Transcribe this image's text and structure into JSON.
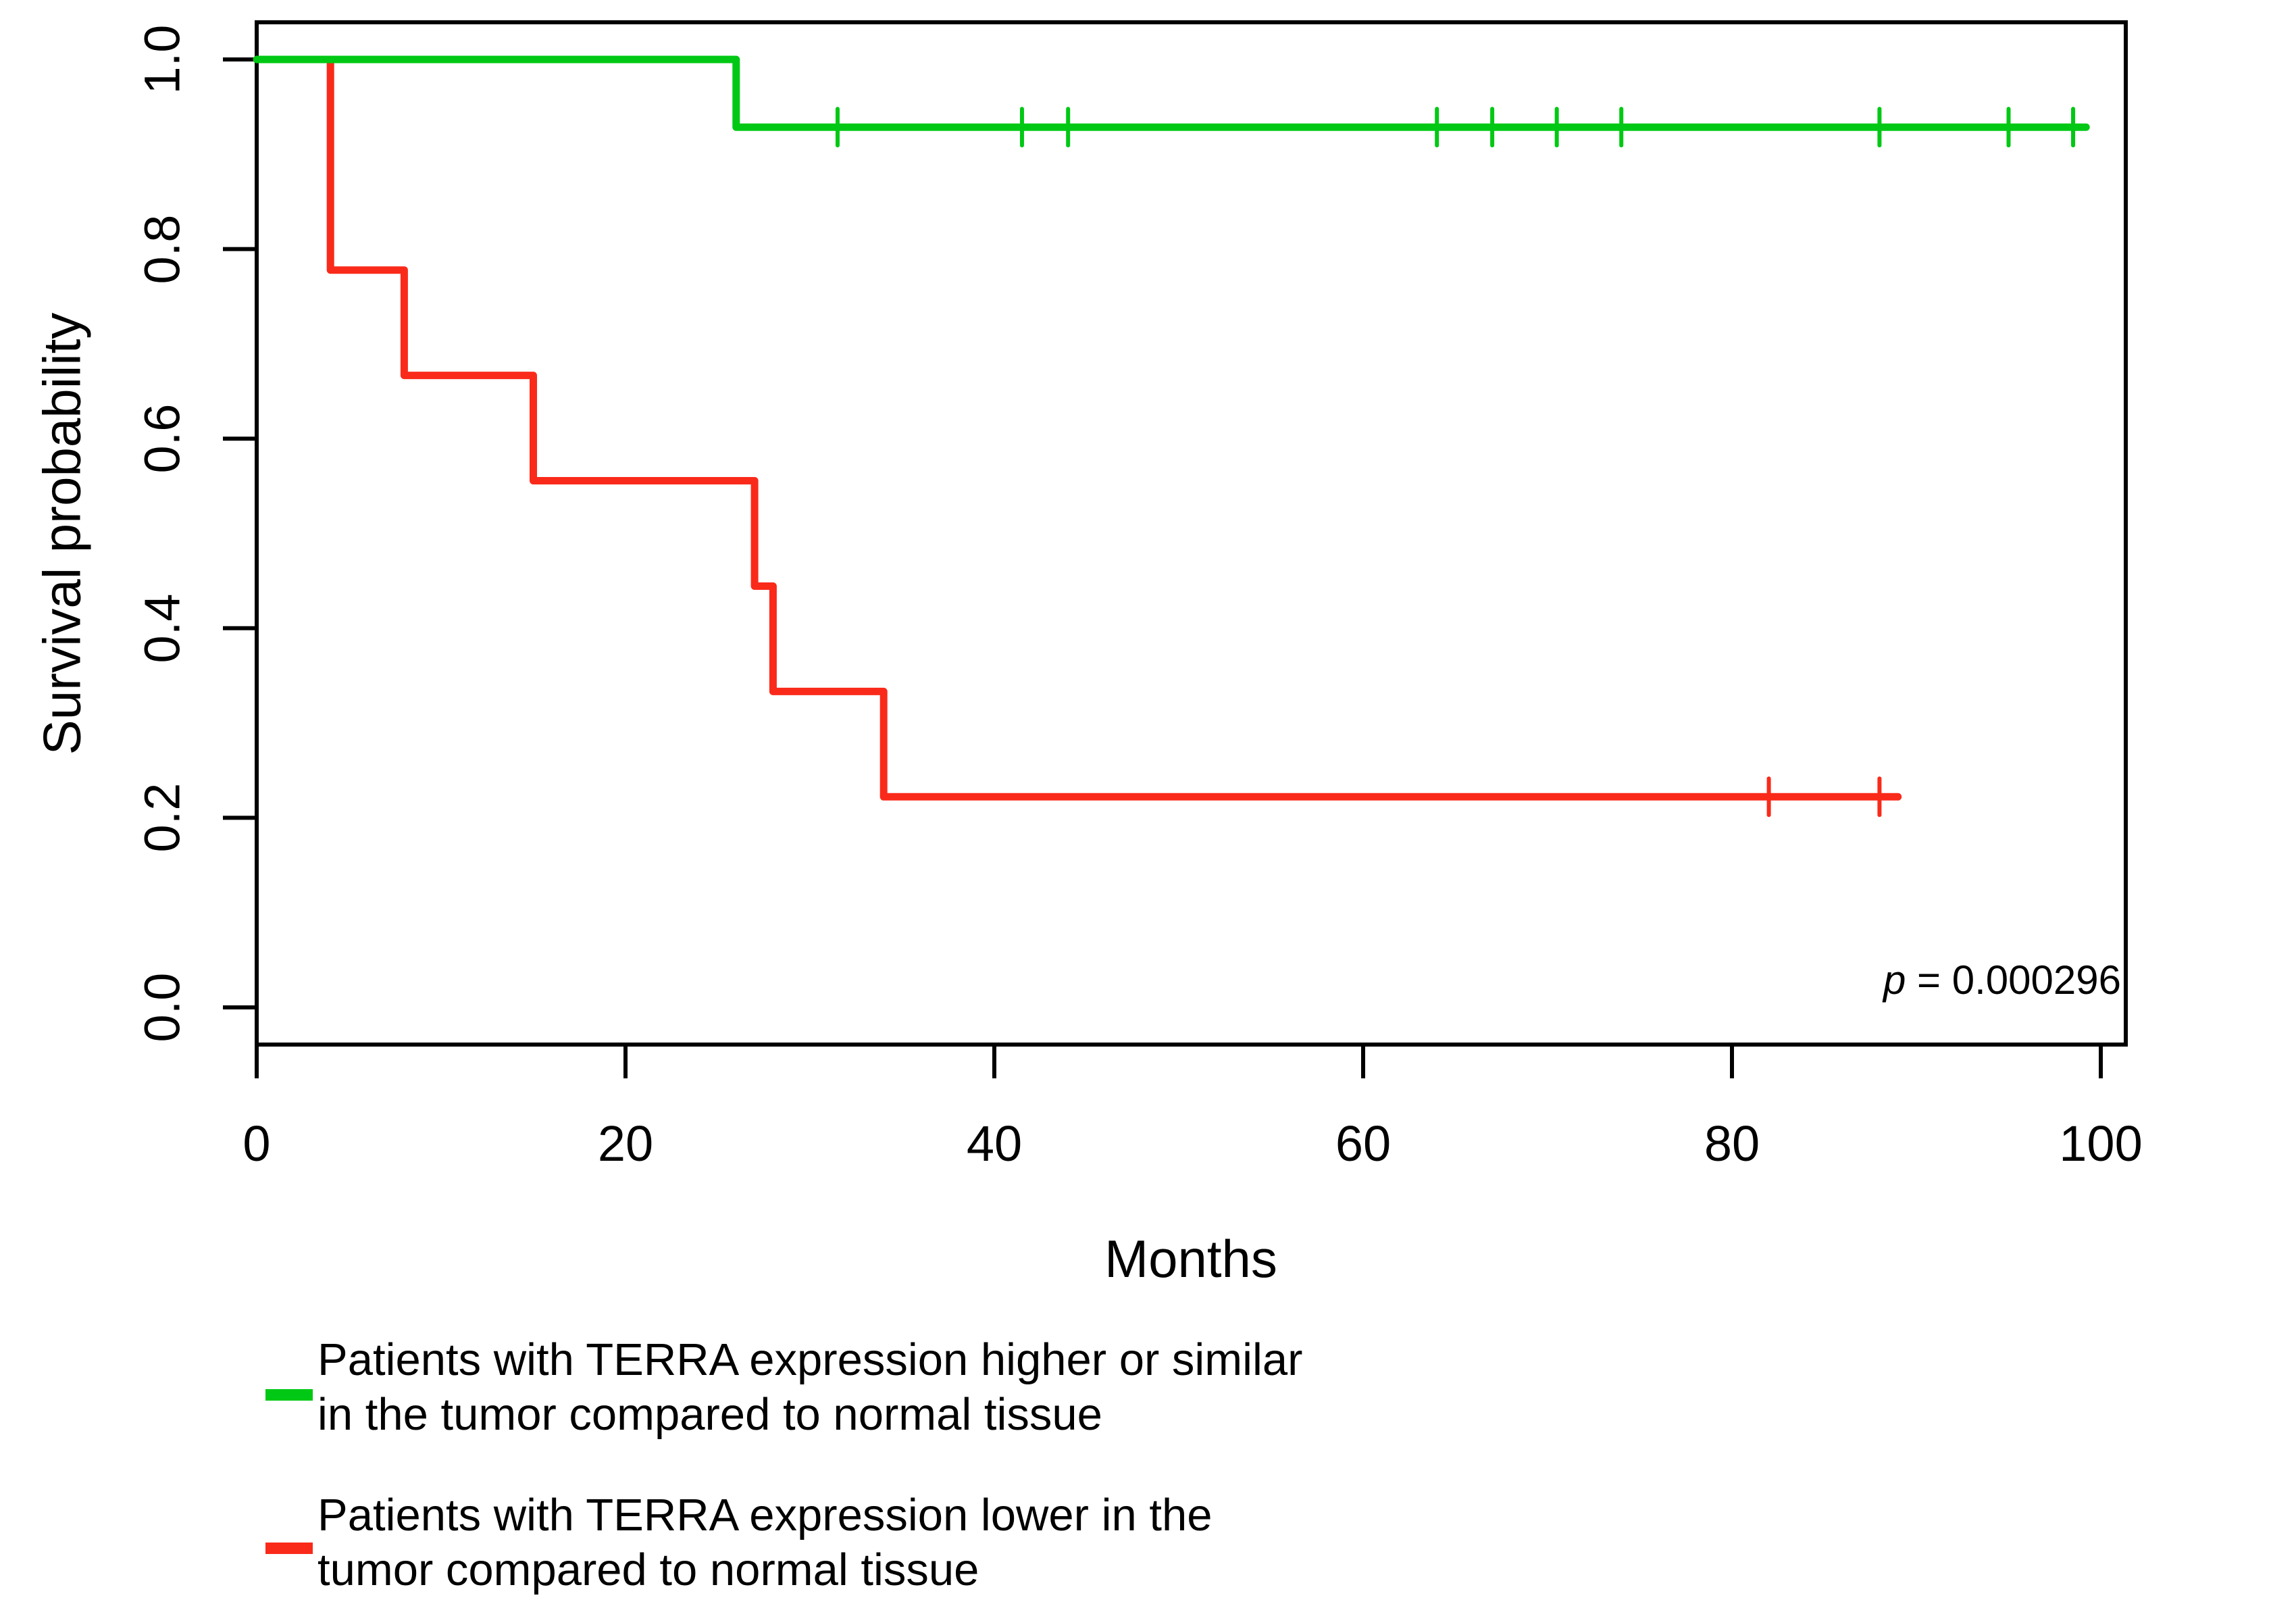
{
  "figure": {
    "background": "#ffffff",
    "p_value": {
      "italic_part": "p",
      "text_part": " = 0.000296"
    }
  },
  "chart_data": {
    "type": "line",
    "subtype": "kaplan-meier-step",
    "title": "",
    "xlabel": "Months",
    "ylabel": "Survival probability",
    "xlim": [
      0,
      101.4
    ],
    "ylim": [
      -0.039,
      1.039
    ],
    "grid": false,
    "axis_color": "#000000",
    "x_ticks": [
      0,
      20,
      40,
      60,
      80,
      100
    ],
    "x_tick_labels": [
      "0",
      "20",
      "40",
      "60",
      "80",
      "100"
    ],
    "y_ticks": [
      0,
      0.2,
      0.4,
      0.6,
      0.8,
      1.0
    ],
    "y_tick_labels": [
      "0.0",
      "0.2",
      "0.4",
      "0.6",
      "0.8",
      "1.0"
    ],
    "annotation_p_value": "p = 0.000296",
    "series": [
      {
        "name": "TERRA expression higher or similar",
        "color": "#00C814",
        "steps": [
          [
            0,
            1
          ],
          [
            26,
            1
          ],
          [
            26,
            0.9286
          ],
          [
            99.2,
            0.9286
          ]
        ],
        "censor_marks": [
          [
            31.5,
            0.9286
          ],
          [
            41.5,
            0.9286
          ],
          [
            44,
            0.9286
          ],
          [
            64,
            0.9286
          ],
          [
            67,
            0.9286
          ],
          [
            70.5,
            0.9286
          ],
          [
            74,
            0.9286
          ],
          [
            88,
            0.9286
          ],
          [
            95,
            0.9286
          ],
          [
            98.5,
            0.9286
          ]
        ]
      },
      {
        "name": "TERRA expression lower",
        "color": "#FA2A1A",
        "steps": [
          [
            0,
            1
          ],
          [
            4,
            1
          ],
          [
            4,
            0.7778
          ],
          [
            8,
            0.7778
          ],
          [
            8,
            0.6667
          ],
          [
            15,
            0.6667
          ],
          [
            15,
            0.5556
          ],
          [
            27,
            0.5556
          ],
          [
            27,
            0.4444
          ],
          [
            28,
            0.4444
          ],
          [
            28,
            0.3333
          ],
          [
            34,
            0.3333
          ],
          [
            34,
            0.2222
          ],
          [
            89,
            0.2222
          ]
        ],
        "censor_marks": [
          [
            82,
            0.2222
          ],
          [
            88,
            0.2222
          ]
        ]
      }
    ],
    "legend": {
      "position": "bottom-left",
      "entries": [
        {
          "color": "#00C814",
          "lines": [
            "Patients with TERRA expression higher or similar",
            "in the tumor compared to normal tissue"
          ]
        },
        {
          "color": "#FA2A1A",
          "lines": [
            "Patients with TERRA expression lower in the",
            "tumor compared to normal tissue"
          ]
        }
      ]
    }
  }
}
